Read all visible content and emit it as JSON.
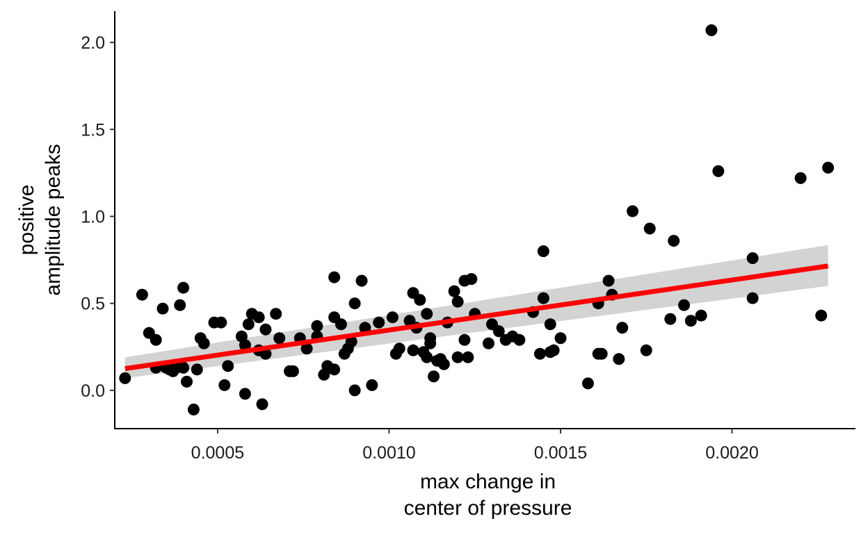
{
  "chart_data": {
    "type": "scatter",
    "xlabel": [
      "max change in",
      "center of pressure"
    ],
    "ylabel": [
      "positive",
      "amplitude peaks"
    ],
    "x_ticks": [
      "0.0005",
      "0.0010",
      "0.0015",
      "0.0020"
    ],
    "y_ticks": [
      "0.0",
      "0.5",
      "1.0",
      "1.5",
      "2.0"
    ],
    "x_tick_values": [
      0.0005,
      0.001,
      0.0015,
      0.002
    ],
    "y_tick_values": [
      0.0,
      0.5,
      1.0,
      1.5,
      2.0
    ],
    "xlim": [
      0.0002,
      0.00236
    ],
    "ylim": [
      -0.22,
      2.18
    ],
    "grid": false,
    "point_color": "#000000",
    "fit_line_color": "#ff0000",
    "ci_band_color": "#d3d3d3",
    "fit": {
      "x": [
        0.00023,
        0.00228
      ],
      "y": [
        0.125,
        0.715
      ],
      "ci_lower": [
        0.07,
        0.6
      ],
      "ci_upper": [
        0.19,
        0.835
      ]
    },
    "points": [
      {
        "x": 0.00023,
        "y": 0.07
      },
      {
        "x": 0.00028,
        "y": 0.55
      },
      {
        "x": 0.0003,
        "y": 0.33
      },
      {
        "x": 0.00032,
        "y": 0.29
      },
      {
        "x": 0.00032,
        "y": 0.13
      },
      {
        "x": 0.00034,
        "y": 0.47
      },
      {
        "x": 0.00035,
        "y": 0.13
      },
      {
        "x": 0.00036,
        "y": 0.12
      },
      {
        "x": 0.00037,
        "y": 0.11
      },
      {
        "x": 0.00038,
        "y": 0.13
      },
      {
        "x": 0.00039,
        "y": 0.49
      },
      {
        "x": 0.0004,
        "y": 0.59
      },
      {
        "x": 0.0004,
        "y": 0.13
      },
      {
        "x": 0.00041,
        "y": 0.05
      },
      {
        "x": 0.00043,
        "y": -0.11
      },
      {
        "x": 0.00044,
        "y": 0.12
      },
      {
        "x": 0.00045,
        "y": 0.3
      },
      {
        "x": 0.00046,
        "y": 0.27
      },
      {
        "x": 0.00049,
        "y": 0.39
      },
      {
        "x": 0.00051,
        "y": 0.39
      },
      {
        "x": 0.00052,
        "y": 0.03
      },
      {
        "x": 0.00053,
        "y": 0.14
      },
      {
        "x": 0.00057,
        "y": 0.31
      },
      {
        "x": 0.00058,
        "y": 0.26
      },
      {
        "x": 0.00058,
        "y": -0.02
      },
      {
        "x": 0.00059,
        "y": 0.38
      },
      {
        "x": 0.0006,
        "y": 0.44
      },
      {
        "x": 0.00062,
        "y": 0.42
      },
      {
        "x": 0.00062,
        "y": 0.23
      },
      {
        "x": 0.00063,
        "y": -0.08
      },
      {
        "x": 0.00064,
        "y": 0.21
      },
      {
        "x": 0.00064,
        "y": 0.35
      },
      {
        "x": 0.00067,
        "y": 0.44
      },
      {
        "x": 0.00068,
        "y": 0.3
      },
      {
        "x": 0.00071,
        "y": 0.11
      },
      {
        "x": 0.00072,
        "y": 0.11
      },
      {
        "x": 0.00074,
        "y": 0.3
      },
      {
        "x": 0.00076,
        "y": 0.24
      },
      {
        "x": 0.00079,
        "y": 0.31
      },
      {
        "x": 0.00079,
        "y": 0.37
      },
      {
        "x": 0.00081,
        "y": 0.09
      },
      {
        "x": 0.00082,
        "y": 0.14
      },
      {
        "x": 0.00084,
        "y": 0.65
      },
      {
        "x": 0.00084,
        "y": 0.42
      },
      {
        "x": 0.00084,
        "y": 0.12
      },
      {
        "x": 0.00086,
        "y": 0.38
      },
      {
        "x": 0.00087,
        "y": 0.21
      },
      {
        "x": 0.00088,
        "y": 0.24
      },
      {
        "x": 0.00089,
        "y": 0.28
      },
      {
        "x": 0.0009,
        "y": 0.5
      },
      {
        "x": 0.0009,
        "y": 0.0
      },
      {
        "x": 0.00092,
        "y": 0.63
      },
      {
        "x": 0.00093,
        "y": 0.36
      },
      {
        "x": 0.00095,
        "y": 0.03
      },
      {
        "x": 0.00097,
        "y": 0.39
      },
      {
        "x": 0.00101,
        "y": 0.42
      },
      {
        "x": 0.00102,
        "y": 0.21
      },
      {
        "x": 0.00103,
        "y": 0.24
      },
      {
        "x": 0.00106,
        "y": 0.4
      },
      {
        "x": 0.00107,
        "y": 0.56
      },
      {
        "x": 0.00107,
        "y": 0.23
      },
      {
        "x": 0.00108,
        "y": 0.36
      },
      {
        "x": 0.00109,
        "y": 0.52
      },
      {
        "x": 0.0011,
        "y": 0.22
      },
      {
        "x": 0.00111,
        "y": 0.44
      },
      {
        "x": 0.00111,
        "y": 0.19
      },
      {
        "x": 0.00112,
        "y": 0.3
      },
      {
        "x": 0.00112,
        "y": 0.27
      },
      {
        "x": 0.00113,
        "y": 0.08
      },
      {
        "x": 0.00114,
        "y": 0.17
      },
      {
        "x": 0.00115,
        "y": 0.18
      },
      {
        "x": 0.00116,
        "y": 0.15
      },
      {
        "x": 0.00117,
        "y": 0.39
      },
      {
        "x": 0.00119,
        "y": 0.57
      },
      {
        "x": 0.0012,
        "y": 0.51
      },
      {
        "x": 0.0012,
        "y": 0.19
      },
      {
        "x": 0.00122,
        "y": 0.63
      },
      {
        "x": 0.00122,
        "y": 0.29
      },
      {
        "x": 0.00123,
        "y": 0.19
      },
      {
        "x": 0.00124,
        "y": 0.64
      },
      {
        "x": 0.00125,
        "y": 0.44
      },
      {
        "x": 0.00129,
        "y": 0.27
      },
      {
        "x": 0.0013,
        "y": 0.38
      },
      {
        "x": 0.00132,
        "y": 0.34
      },
      {
        "x": 0.00134,
        "y": 0.29
      },
      {
        "x": 0.00136,
        "y": 0.31
      },
      {
        "x": 0.00138,
        "y": 0.29
      },
      {
        "x": 0.00142,
        "y": 0.45
      },
      {
        "x": 0.00144,
        "y": 0.21
      },
      {
        "x": 0.00145,
        "y": 0.8
      },
      {
        "x": 0.00145,
        "y": 0.53
      },
      {
        "x": 0.00147,
        "y": 0.22
      },
      {
        "x": 0.00147,
        "y": 0.38
      },
      {
        "x": 0.00148,
        "y": 0.23
      },
      {
        "x": 0.0015,
        "y": 0.3
      },
      {
        "x": 0.00158,
        "y": 0.04
      },
      {
        "x": 0.00161,
        "y": 0.5
      },
      {
        "x": 0.00161,
        "y": 0.21
      },
      {
        "x": 0.00162,
        "y": 0.21
      },
      {
        "x": 0.00164,
        "y": 0.63
      },
      {
        "x": 0.00165,
        "y": 0.55
      },
      {
        "x": 0.00167,
        "y": 0.18
      },
      {
        "x": 0.00168,
        "y": 0.36
      },
      {
        "x": 0.00171,
        "y": 1.03
      },
      {
        "x": 0.00175,
        "y": 0.23
      },
      {
        "x": 0.00176,
        "y": 0.93
      },
      {
        "x": 0.00182,
        "y": 0.41
      },
      {
        "x": 0.00183,
        "y": 0.86
      },
      {
        "x": 0.00186,
        "y": 0.49
      },
      {
        "x": 0.00188,
        "y": 0.4
      },
      {
        "x": 0.00191,
        "y": 0.43
      },
      {
        "x": 0.00194,
        "y": 2.07
      },
      {
        "x": 0.00196,
        "y": 1.26
      },
      {
        "x": 0.00206,
        "y": 0.76
      },
      {
        "x": 0.00206,
        "y": 0.53
      },
      {
        "x": 0.0022,
        "y": 1.22
      },
      {
        "x": 0.00226,
        "y": 0.43
      },
      {
        "x": 0.00228,
        "y": 1.28
      }
    ]
  }
}
